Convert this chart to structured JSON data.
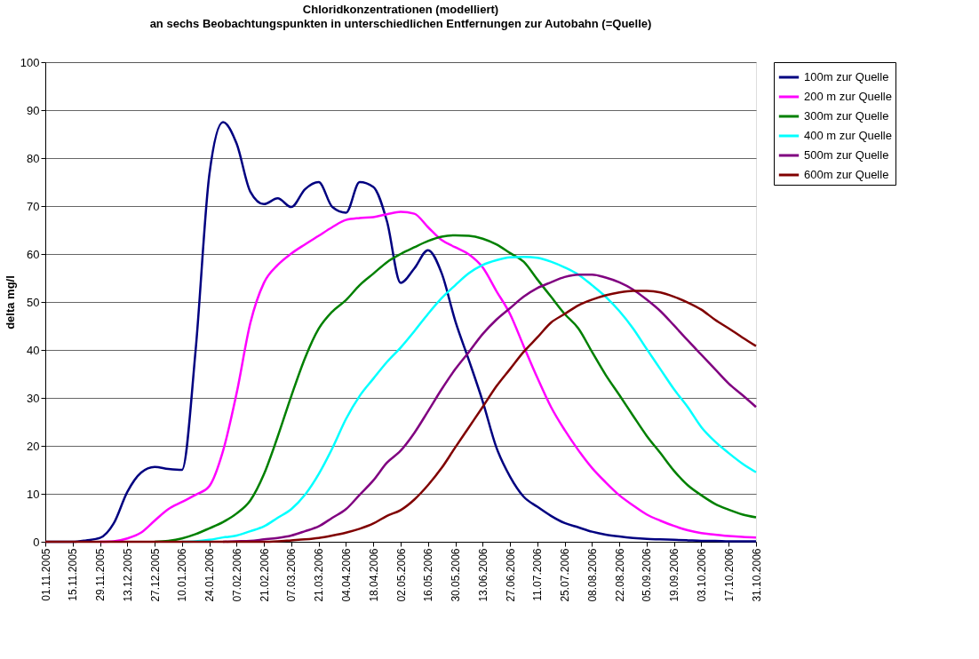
{
  "chart_data": {
    "type": "line",
    "title": "Chloridkonzentrationen (modelliert)",
    "subtitle": "an sechs Beobachtungspunkten in unterschiedlichen Entfernungen zur Autobahn (=Quelle)",
    "ylabel": "delta mg/l",
    "x": [
      "2005-11-01",
      "2005-11-08",
      "2005-11-15",
      "2005-11-22",
      "2005-11-29",
      "2005-12-06",
      "2005-12-13",
      "2005-12-20",
      "2005-12-27",
      "2006-01-03",
      "2006-01-10",
      "2006-01-17",
      "2006-01-24",
      "2006-01-31",
      "2006-02-07",
      "2006-02-14",
      "2006-02-21",
      "2006-02-28",
      "2006-03-07",
      "2006-03-14",
      "2006-03-21",
      "2006-03-28",
      "2006-04-04",
      "2006-04-11",
      "2006-04-18",
      "2006-04-25",
      "2006-05-02",
      "2006-05-09",
      "2006-05-16",
      "2006-05-23",
      "2006-05-30",
      "2006-06-06",
      "2006-06-13",
      "2006-06-20",
      "2006-06-27",
      "2006-07-04",
      "2006-07-11",
      "2006-07-18",
      "2006-07-25",
      "2006-08-01",
      "2006-08-08",
      "2006-08-15",
      "2006-08-22",
      "2006-08-29",
      "2006-09-05",
      "2006-09-12",
      "2006-09-19",
      "2006-09-26",
      "2006-10-03",
      "2006-10-10",
      "2006-10-17",
      "2006-10-24",
      "2006-10-31"
    ],
    "series": [
      {
        "name": "100m zur Quelle",
        "color": "#000080",
        "values": [
          0,
          0,
          0,
          0.3,
          0.8,
          3.8,
          10.4,
          14.4,
          15.6,
          15.2,
          15,
          40,
          76.5,
          87.5,
          83,
          73,
          70.4,
          71.6,
          69.8,
          73.5,
          75,
          69.8,
          68.6,
          75,
          74,
          66.8,
          54,
          57,
          60.8,
          56,
          46,
          37.8,
          29.3,
          19.7,
          13.6,
          9.4,
          7.3,
          5.4,
          3.9,
          3,
          2.1,
          1.5,
          1.1,
          0.8,
          0.6,
          0.5,
          0.4,
          0.3,
          0.2,
          0.2,
          0.1,
          0.1,
          0.1
        ]
      },
      {
        "name": "200 m zur Quelle",
        "color": "#ff00ff",
        "values": [
          null,
          null,
          null,
          null,
          0,
          0.1,
          0.7,
          1.9,
          4.4,
          6.8,
          8.3,
          9.8,
          11.6,
          18.9,
          31,
          45.6,
          54,
          57.7,
          60.1,
          62,
          63.8,
          65.6,
          67.1,
          67.5,
          67.7,
          68.3,
          68.8,
          68.4,
          65.6,
          62.9,
          61.4,
          59.9,
          57.2,
          52.3,
          47.5,
          40.8,
          34.2,
          28.1,
          23.3,
          19.1,
          15.4,
          12.4,
          9.7,
          7.6,
          5.7,
          4.4,
          3.3,
          2.4,
          1.8,
          1.5,
          1.2,
          1,
          0.9
        ]
      },
      {
        "name": "300m zur Quelle",
        "color": "#008000",
        "values": [
          null,
          null,
          null,
          null,
          null,
          null,
          null,
          null,
          0,
          0.2,
          0.7,
          1.6,
          2.8,
          4.1,
          5.9,
          8.6,
          14.1,
          21.9,
          30.4,
          38.3,
          44.4,
          48,
          50.4,
          53.5,
          55.9,
          58.3,
          60,
          61.4,
          62.7,
          63.6,
          63.9,
          63.8,
          63.2,
          62,
          60.2,
          58.4,
          54.7,
          51.1,
          47.5,
          44.5,
          39.6,
          34.8,
          30.6,
          26.3,
          22.1,
          18.5,
          14.8,
          11.8,
          9.7,
          7.9,
          6.7,
          5.7,
          5.1
        ]
      },
      {
        "name": "400 m zur Quelle",
        "color": "#00ffff",
        "values": [
          null,
          null,
          null,
          null,
          null,
          null,
          null,
          null,
          null,
          null,
          0,
          0.1,
          0.4,
          0.9,
          1.3,
          2.2,
          3.2,
          5,
          6.8,
          9.8,
          14.1,
          19.5,
          25.6,
          30.4,
          34,
          37.5,
          40.5,
          43.9,
          47.5,
          50.8,
          53.5,
          56,
          57.7,
          58.7,
          59.3,
          59.4,
          59.2,
          58.4,
          57.2,
          55.7,
          53.5,
          51.1,
          48.1,
          44.5,
          40.2,
          36,
          31.8,
          28.1,
          23.9,
          20.9,
          18.5,
          16.3,
          14.5
        ]
      },
      {
        "name": "500m zur Quelle",
        "color": "#800080",
        "values": [
          null,
          null,
          null,
          null,
          null,
          null,
          null,
          null,
          null,
          null,
          null,
          null,
          null,
          0,
          0.1,
          0.2,
          0.5,
          0.8,
          1.3,
          2.2,
          3.2,
          5,
          6.8,
          9.8,
          12.8,
          16.5,
          19,
          22.7,
          27.2,
          31.8,
          36,
          39.6,
          43.3,
          46.3,
          48.7,
          51.1,
          52.9,
          54.1,
          55.2,
          55.7,
          55.7,
          55.1,
          54.1,
          52.6,
          50.5,
          48.1,
          45.1,
          42,
          39,
          36,
          33,
          30.6,
          28.1
        ]
      },
      {
        "name": "600m zur Quelle",
        "color": "#800000",
        "values": [
          0,
          0,
          0,
          0,
          0,
          0,
          0,
          0,
          0,
          0,
          0,
          0,
          0,
          0,
          0,
          0,
          0,
          0.1,
          0.3,
          0.5,
          0.8,
          1.3,
          1.9,
          2.7,
          3.8,
          5.4,
          6.6,
          8.8,
          11.8,
          15.4,
          19.7,
          23.9,
          28.1,
          32.4,
          36,
          39.6,
          42.6,
          45.7,
          47.5,
          49.3,
          50.5,
          51.4,
          52,
          52.3,
          52.3,
          52,
          51.1,
          49.9,
          48.4,
          46.3,
          44.5,
          42.6,
          40.8
        ]
      }
    ],
    "xlim": [
      "2005-11-01",
      "2006-10-31"
    ],
    "xticks": [
      {
        "value": "2005-11-01",
        "label": "01.11.2005"
      },
      {
        "value": "2005-11-15",
        "label": "15.11.2005"
      },
      {
        "value": "2005-11-29",
        "label": "29.11.2005"
      },
      {
        "value": "2005-12-13",
        "label": "13.12.2005"
      },
      {
        "value": "2005-12-27",
        "label": "27.12.2005"
      },
      {
        "value": "2006-01-10",
        "label": "10.01.2006"
      },
      {
        "value": "2006-01-24",
        "label": "24.01.2006"
      },
      {
        "value": "2006-02-07",
        "label": "07.02.2006"
      },
      {
        "value": "2006-02-21",
        "label": "21.02.2006"
      },
      {
        "value": "2006-03-07",
        "label": "07.03.2006"
      },
      {
        "value": "2006-03-21",
        "label": "21.03.2006"
      },
      {
        "value": "2006-04-04",
        "label": "04.04.2006"
      },
      {
        "value": "2006-04-18",
        "label": "18.04.2006"
      },
      {
        "value": "2006-05-02",
        "label": "02.05.2006"
      },
      {
        "value": "2006-05-16",
        "label": "16.05.2006"
      },
      {
        "value": "2006-05-30",
        "label": "30.05.2006"
      },
      {
        "value": "2006-06-13",
        "label": "13.06.2006"
      },
      {
        "value": "2006-06-27",
        "label": "27.06.2006"
      },
      {
        "value": "2006-07-11",
        "label": "11.07.2006"
      },
      {
        "value": "2006-07-25",
        "label": "25.07.2006"
      },
      {
        "value": "2006-08-08",
        "label": "08.08.2006"
      },
      {
        "value": "2006-08-22",
        "label": "22.08.2006"
      },
      {
        "value": "2006-09-05",
        "label": "05.09.2006"
      },
      {
        "value": "2006-09-19",
        "label": "19.09.2006"
      },
      {
        "value": "2006-10-03",
        "label": "03.10.2006"
      },
      {
        "value": "2006-10-17",
        "label": "17.10.2006"
      },
      {
        "value": "2006-10-31",
        "label": "31.10.2006"
      }
    ],
    "ylim": [
      0,
      100
    ],
    "yticks": [
      0,
      10,
      20,
      30,
      40,
      50,
      60,
      70,
      80,
      90,
      100
    ],
    "grid": "y",
    "legend": "right",
    "marker": "none",
    "line_style": "solid"
  }
}
